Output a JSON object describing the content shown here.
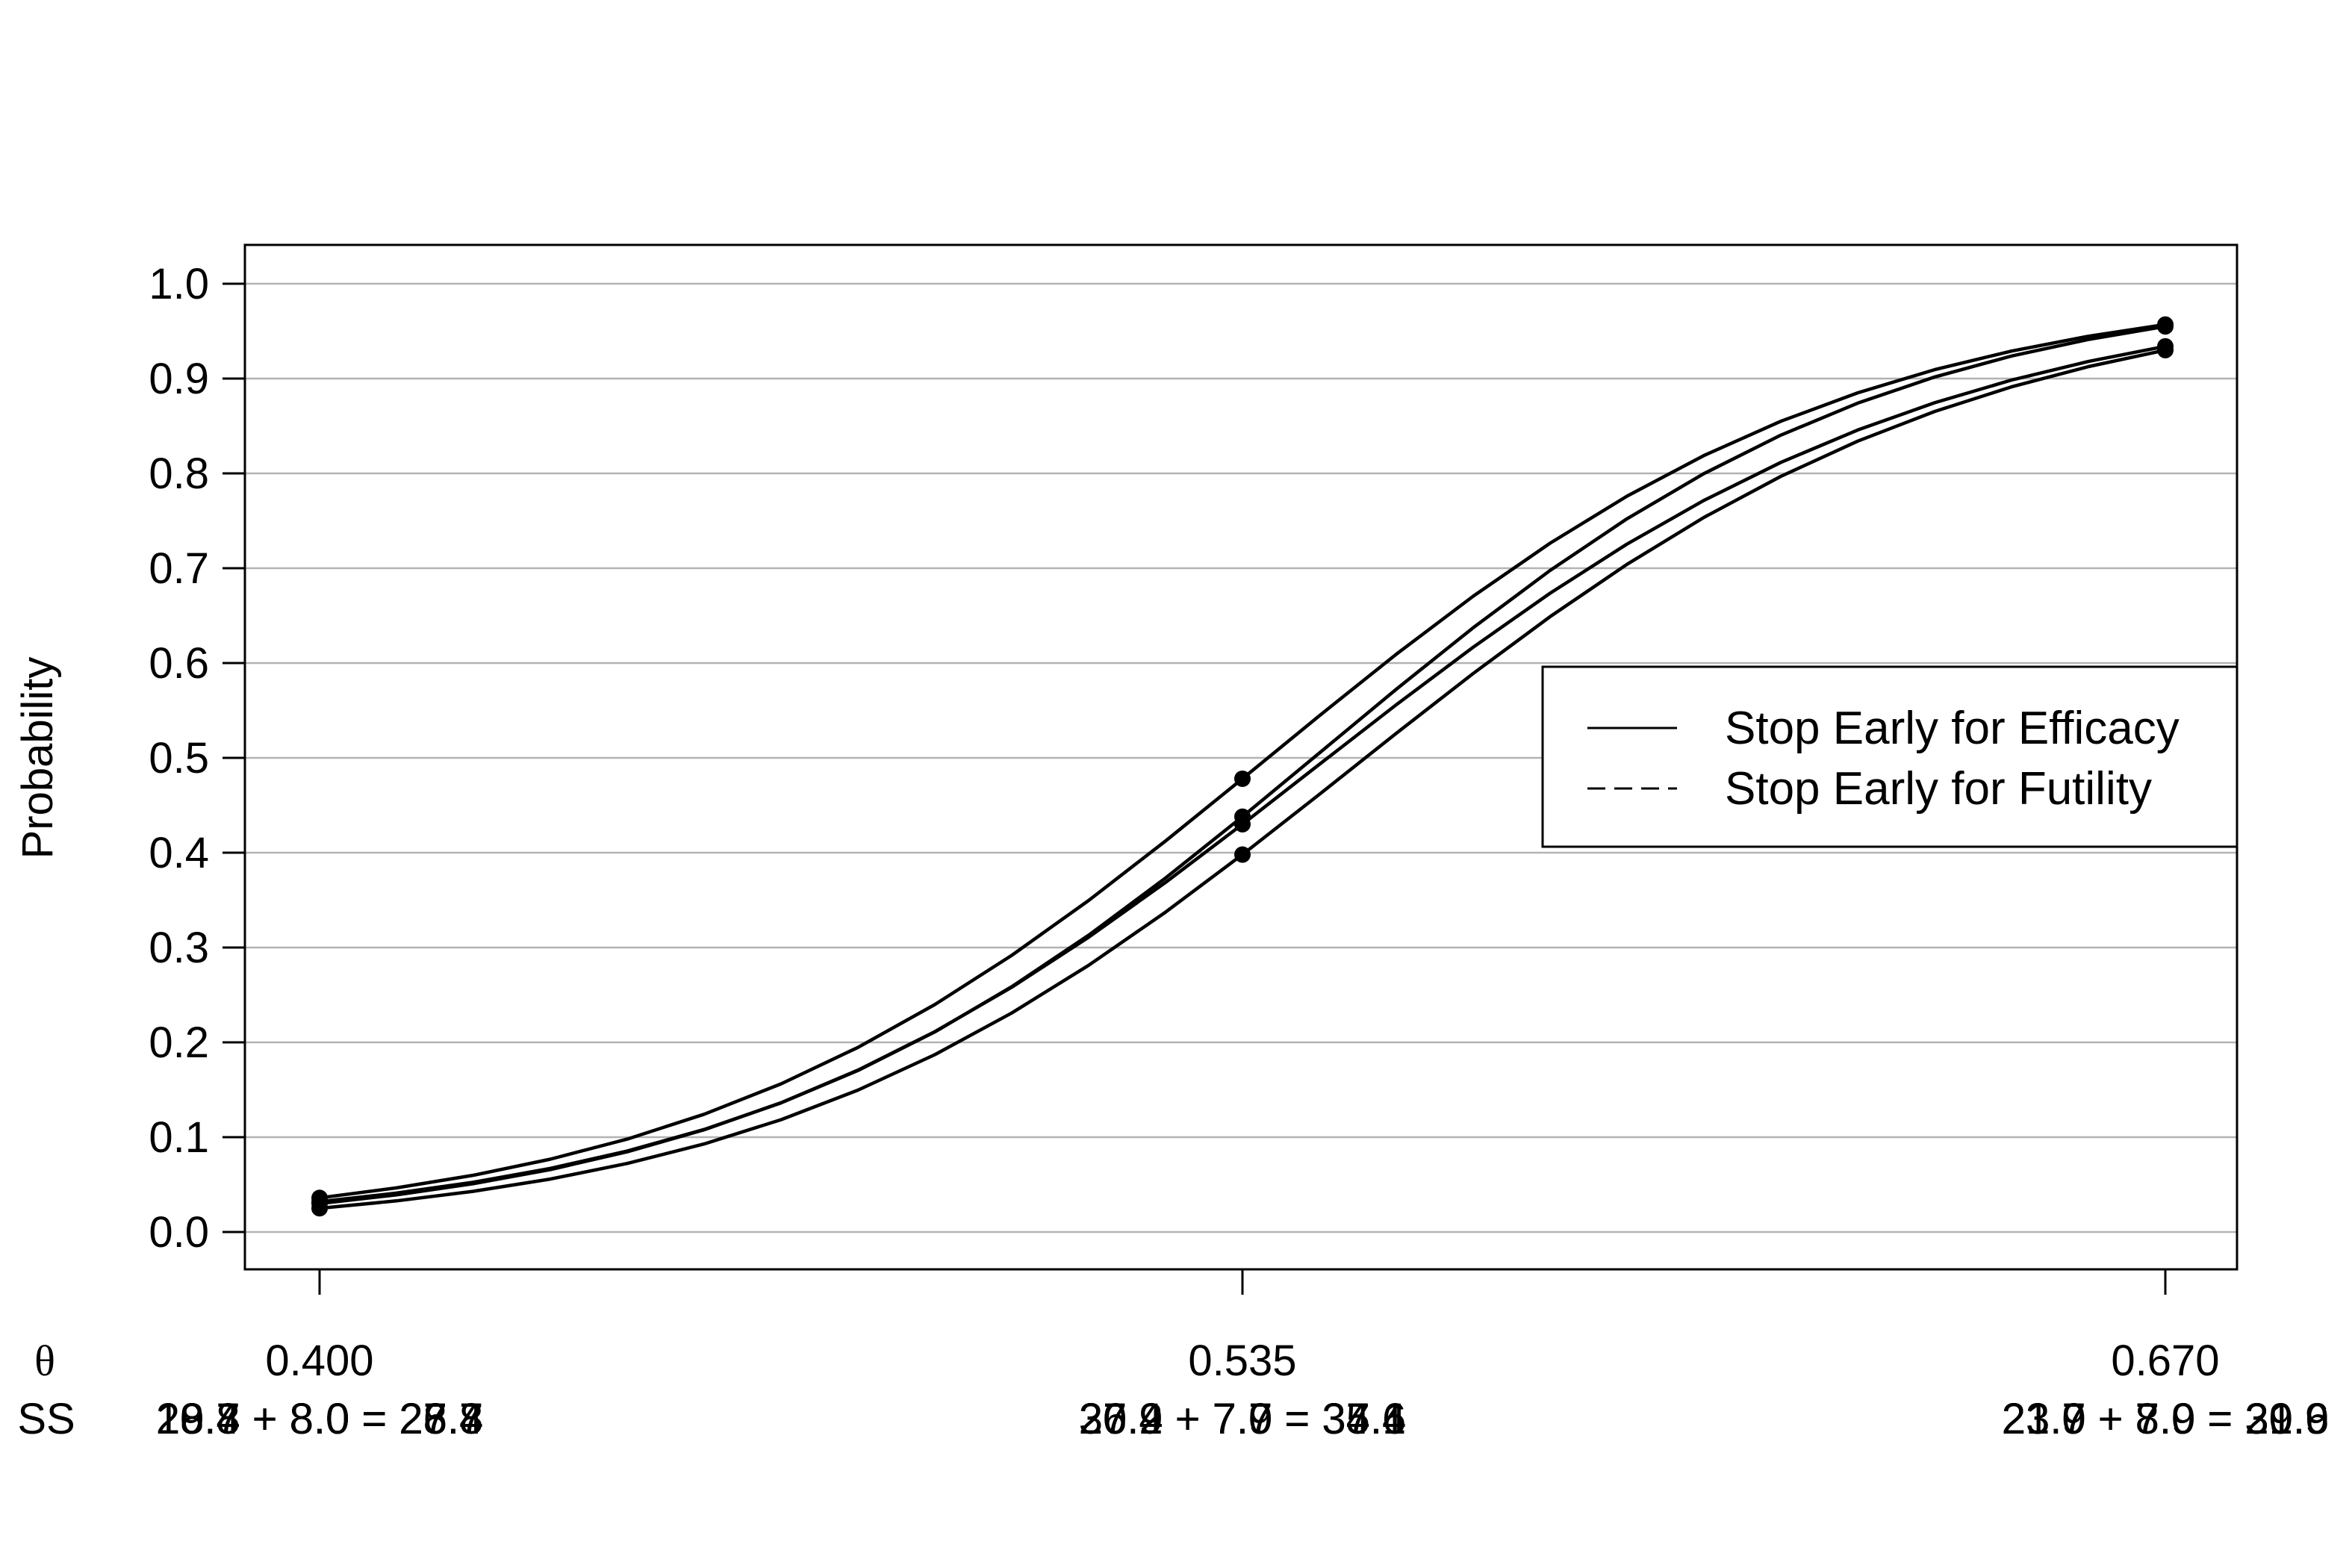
{
  "chart_data": {
    "type": "line",
    "ylabel": "Probability",
    "xlabel": "",
    "ylim": [
      0.0,
      1.0
    ],
    "xlim": [
      0.4,
      0.67
    ],
    "grid": "horizontal",
    "legend_position": "right",
    "y_ticks": [
      "0.0",
      "0.1",
      "0.2",
      "0.3",
      "0.4",
      "0.5",
      "0.6",
      "0.7",
      "0.8",
      "0.9",
      "1.0"
    ],
    "x_ticks": [
      {
        "value": 0.4,
        "label": "0.400"
      },
      {
        "value": 0.535,
        "label": "0.535"
      },
      {
        "value": 0.67,
        "label": "0.670"
      }
    ],
    "theta_row_label": "θ",
    "ss_row_label": "SS",
    "ss_labels": [
      [
        "20.4 + 8.0 = 28.4",
        "19.7 + 8.0 = 27.7",
        "18.8 + 8.0 = 26.8"
      ],
      [
        "27.9 + 7.7 = 35.6",
        "26.2 + 7.9 = 34.1",
        "30.4 + 7.0 = 37.4"
      ],
      [
        "23.7 + 7.9 = 31.6",
        "21.9 + 8.0 = 29.9",
        "23.0 + 7.9 = 30.9"
      ]
    ],
    "legend": [
      {
        "label": "Stop Early for Efficacy",
        "style": "solid"
      },
      {
        "label": "Stop Early for Futility",
        "style": "dashed"
      }
    ],
    "series": [
      {
        "x": [
          0.4,
          0.535,
          0.67
        ],
        "y": [
          0.036,
          0.478,
          0.957
        ],
        "marker_idx": [
          0,
          1,
          2
        ]
      },
      {
        "x": [
          0.4,
          0.535,
          0.67
        ],
        "y": [
          0.032,
          0.438,
          0.955
        ],
        "marker_idx": [
          0,
          1,
          2
        ]
      },
      {
        "x": [
          0.4,
          0.535,
          0.67
        ],
        "y": [
          0.03,
          0.43,
          0.934
        ],
        "marker_idx": [
          0,
          1,
          2
        ]
      },
      {
        "x": [
          0.4,
          0.535,
          0.67
        ],
        "y": [
          0.025,
          0.398,
          0.93
        ],
        "marker_idx": [
          0,
          1,
          2
        ]
      }
    ],
    "series_color": "#000000",
    "grid_color": "#b3b3b3"
  }
}
